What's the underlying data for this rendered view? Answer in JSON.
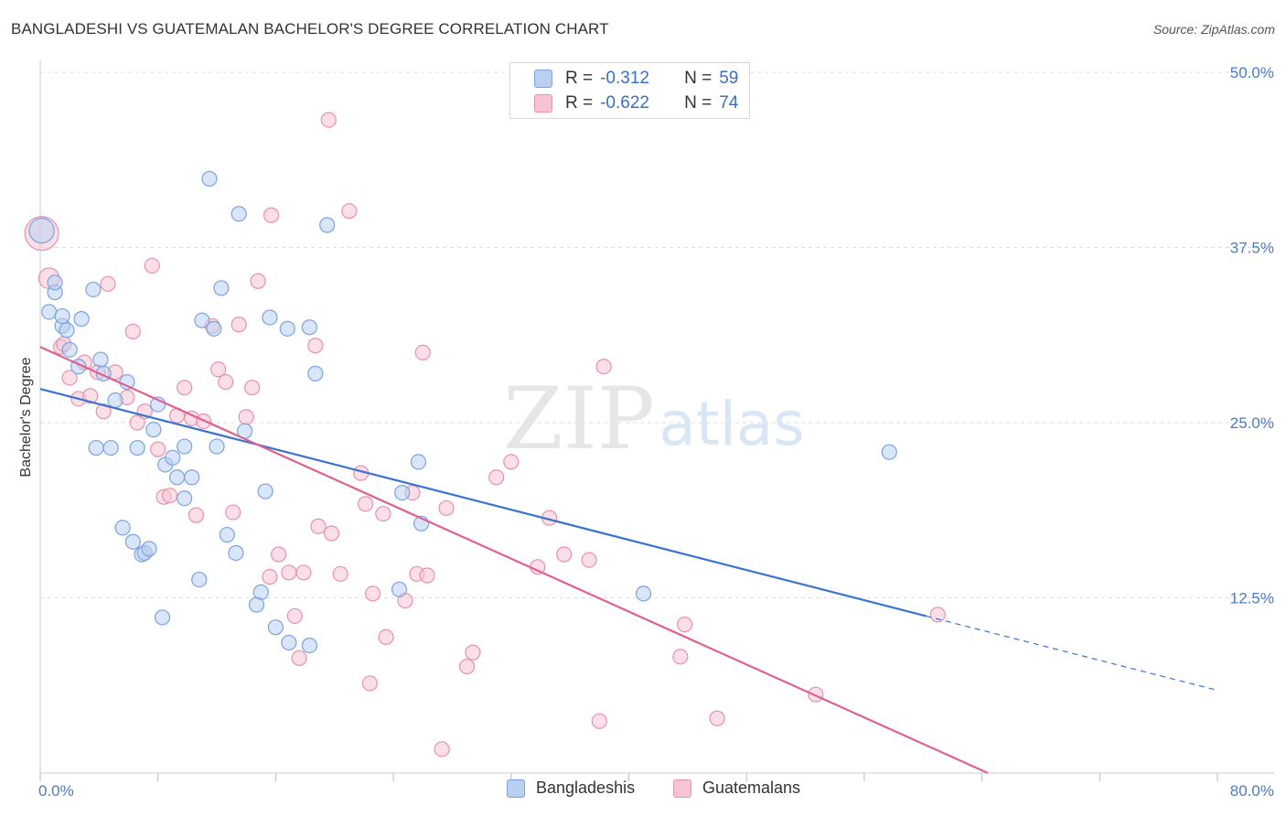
{
  "header": {
    "title": "BANGLADESHI VS GUATEMALAN BACHELOR'S DEGREE CORRELATION CHART",
    "source": "Source: ZipAtlas.com"
  },
  "watermark": {
    "zip": "ZIP",
    "atlas": "atlas"
  },
  "legend_top": {
    "rows": [
      {
        "r_label": "R =",
        "r_value": "-0.312",
        "n_label": "N =",
        "n_value": "59"
      },
      {
        "r_label": "R =",
        "r_value": "-0.622",
        "n_label": "N =",
        "n_value": "74"
      }
    ]
  },
  "legend_bottom": {
    "items": [
      "Bangladeshis",
      "Guatemalans"
    ]
  },
  "colors": {
    "blue_fill": "#b9d0f2",
    "blue_stroke": "#7aa3e0",
    "blue_line": "#3a73d0",
    "pink_fill": "#f8c4d4",
    "pink_stroke": "#e890ad",
    "pink_line": "#e0608e",
    "grid": "#dddddd",
    "tick_text": "#4a7cc9"
  },
  "chart_data": {
    "type": "scatter",
    "title": "BANGLADESHI VS GUATEMALAN BACHELOR'S DEGREE CORRELATION CHART",
    "xlabel": "",
    "ylabel": "Bachelor's Degree",
    "xlim": [
      0,
      80
    ],
    "ylim": [
      0,
      50
    ],
    "x_tick_labels": [
      "0.0%",
      "80.0%"
    ],
    "y_ticks": [
      12.5,
      25.0,
      37.5,
      50.0
    ],
    "y_tick_labels": [
      "12.5%",
      "25.0%",
      "37.5%",
      "50.0%"
    ],
    "grid": true,
    "legend_position": "top-center",
    "series": [
      {
        "name": "Bangladeshis",
        "R": -0.312,
        "N": 59,
        "trend": {
          "x": [
            0,
            60.2
          ],
          "y": [
            27.4,
            11.2
          ],
          "dashed_extension": {
            "x": [
              60.2,
              80
            ],
            "y": [
              11.2,
              5.9
            ]
          }
        },
        "points": [
          [
            0.1,
            38.7,
            1.7
          ],
          [
            0.6,
            32.9,
            1
          ],
          [
            1.0,
            34.3,
            1
          ],
          [
            1.5,
            31.9,
            1
          ],
          [
            1.5,
            32.6,
            1
          ],
          [
            1.8,
            31.6,
            1
          ],
          [
            2.0,
            30.2,
            1
          ],
          [
            2.6,
            29.0,
            1
          ],
          [
            2.8,
            32.4,
            1
          ],
          [
            3.6,
            34.5,
            1
          ],
          [
            4.1,
            29.5,
            1
          ],
          [
            4.3,
            28.5,
            1
          ],
          [
            5.1,
            26.6,
            1
          ],
          [
            5.9,
            27.9,
            1
          ],
          [
            3.8,
            23.2,
            1
          ],
          [
            4.8,
            23.2,
            1
          ],
          [
            6.6,
            23.2,
            1
          ],
          [
            7.7,
            24.5,
            1
          ],
          [
            8.0,
            26.3,
            1
          ],
          [
            5.6,
            17.5,
            1
          ],
          [
            6.3,
            16.5,
            1
          ],
          [
            6.9,
            15.6,
            1
          ],
          [
            7.1,
            15.7,
            1
          ],
          [
            7.4,
            16.0,
            1
          ],
          [
            8.5,
            22.0,
            1
          ],
          [
            9.3,
            21.1,
            1
          ],
          [
            9.0,
            22.5,
            1
          ],
          [
            9.8,
            23.3,
            1
          ],
          [
            10.3,
            21.1,
            1
          ],
          [
            9.8,
            19.6,
            1
          ],
          [
            11.5,
            42.4,
            1
          ],
          [
            12.3,
            34.6,
            1
          ],
          [
            11.0,
            32.3,
            1
          ],
          [
            12.0,
            23.3,
            1
          ],
          [
            11.8,
            31.7,
            1
          ],
          [
            13.5,
            39.9,
            1
          ],
          [
            13.9,
            24.4,
            1
          ],
          [
            15.6,
            32.5,
            1
          ],
          [
            16.8,
            31.7,
            1
          ],
          [
            18.3,
            31.8,
            1
          ],
          [
            18.7,
            28.5,
            1
          ],
          [
            19.5,
            39.1,
            1
          ],
          [
            15.3,
            20.1,
            1
          ],
          [
            12.7,
            17.0,
            1
          ],
          [
            13.3,
            15.7,
            1
          ],
          [
            10.8,
            13.8,
            1
          ],
          [
            15.0,
            12.9,
            1
          ],
          [
            14.7,
            12.0,
            1
          ],
          [
            16.0,
            10.4,
            1
          ],
          [
            16.9,
            9.3,
            1
          ],
          [
            18.3,
            9.1,
            1
          ],
          [
            8.3,
            11.1,
            1
          ],
          [
            24.6,
            20.0,
            1
          ],
          [
            24.4,
            13.1,
            1
          ],
          [
            25.9,
            17.8,
            1
          ],
          [
            25.7,
            22.2,
            1
          ],
          [
            41.0,
            12.8,
            1
          ],
          [
            57.7,
            22.9,
            1
          ],
          [
            1.0,
            35.0,
            1
          ]
        ]
      },
      {
        "name": "Guatemalans",
        "R": -0.622,
        "N": 74,
        "trend": {
          "x": [
            0,
            64.4
          ],
          "y": [
            30.4,
            0.0
          ]
        },
        "points": [
          [
            0.1,
            38.5,
            2.3
          ],
          [
            0.6,
            35.3,
            1.4
          ],
          [
            1.4,
            30.4,
            1
          ],
          [
            1.6,
            30.6,
            1
          ],
          [
            2.0,
            28.2,
            1
          ],
          [
            2.6,
            26.7,
            1
          ],
          [
            3.0,
            29.3,
            1
          ],
          [
            3.4,
            26.9,
            1
          ],
          [
            3.9,
            28.6,
            1
          ],
          [
            4.3,
            25.8,
            1
          ],
          [
            4.6,
            34.9,
            1
          ],
          [
            5.1,
            28.6,
            1
          ],
          [
            5.9,
            26.8,
            1
          ],
          [
            6.3,
            31.5,
            1
          ],
          [
            6.6,
            25.0,
            1
          ],
          [
            7.1,
            25.8,
            1
          ],
          [
            7.6,
            36.2,
            1
          ],
          [
            8.0,
            23.1,
            1
          ],
          [
            8.4,
            19.7,
            1
          ],
          [
            8.8,
            19.8,
            1
          ],
          [
            9.3,
            25.5,
            1
          ],
          [
            9.8,
            27.5,
            1
          ],
          [
            10.3,
            25.3,
            1
          ],
          [
            10.6,
            18.4,
            1
          ],
          [
            11.1,
            25.1,
            1
          ],
          [
            11.7,
            31.9,
            1
          ],
          [
            12.1,
            28.8,
            1
          ],
          [
            12.6,
            27.9,
            1
          ],
          [
            13.1,
            18.6,
            1
          ],
          [
            13.5,
            32.0,
            1
          ],
          [
            14.0,
            25.4,
            1
          ],
          [
            14.4,
            27.5,
            1
          ],
          [
            14.8,
            35.1,
            1
          ],
          [
            15.6,
            14.0,
            1
          ],
          [
            15.7,
            39.8,
            1
          ],
          [
            16.2,
            15.6,
            1
          ],
          [
            16.9,
            14.3,
            1
          ],
          [
            17.3,
            11.2,
            1
          ],
          [
            17.6,
            8.2,
            1
          ],
          [
            17.9,
            14.3,
            1
          ],
          [
            18.7,
            30.5,
            1
          ],
          [
            18.9,
            17.6,
            1
          ],
          [
            19.6,
            46.6,
            1
          ],
          [
            19.8,
            17.1,
            1
          ],
          [
            20.4,
            14.2,
            1
          ],
          [
            21.0,
            40.1,
            1
          ],
          [
            21.8,
            21.4,
            1
          ],
          [
            22.1,
            19.2,
            1
          ],
          [
            22.4,
            6.4,
            1
          ],
          [
            22.6,
            12.8,
            1
          ],
          [
            23.3,
            18.5,
            1
          ],
          [
            23.5,
            9.7,
            1
          ],
          [
            24.8,
            12.3,
            1
          ],
          [
            25.3,
            20.0,
            1
          ],
          [
            25.6,
            14.2,
            1
          ],
          [
            26.0,
            30.0,
            1
          ],
          [
            26.3,
            14.1,
            1
          ],
          [
            27.3,
            1.7,
            1
          ],
          [
            27.6,
            18.9,
            1
          ],
          [
            29.0,
            7.6,
            1
          ],
          [
            29.4,
            8.6,
            1
          ],
          [
            31.0,
            21.1,
            1
          ],
          [
            32.0,
            22.2,
            1
          ],
          [
            33.8,
            14.7,
            1
          ],
          [
            34.6,
            18.2,
            1
          ],
          [
            35.6,
            15.6,
            1
          ],
          [
            37.3,
            15.2,
            1
          ],
          [
            38.0,
            3.7,
            1
          ],
          [
            38.3,
            29.0,
            1
          ],
          [
            43.5,
            8.3,
            1
          ],
          [
            43.8,
            10.6,
            1
          ],
          [
            46.0,
            3.9,
            1
          ],
          [
            52.7,
            5.6,
            1
          ],
          [
            61.0,
            11.3,
            1
          ]
        ]
      }
    ]
  }
}
